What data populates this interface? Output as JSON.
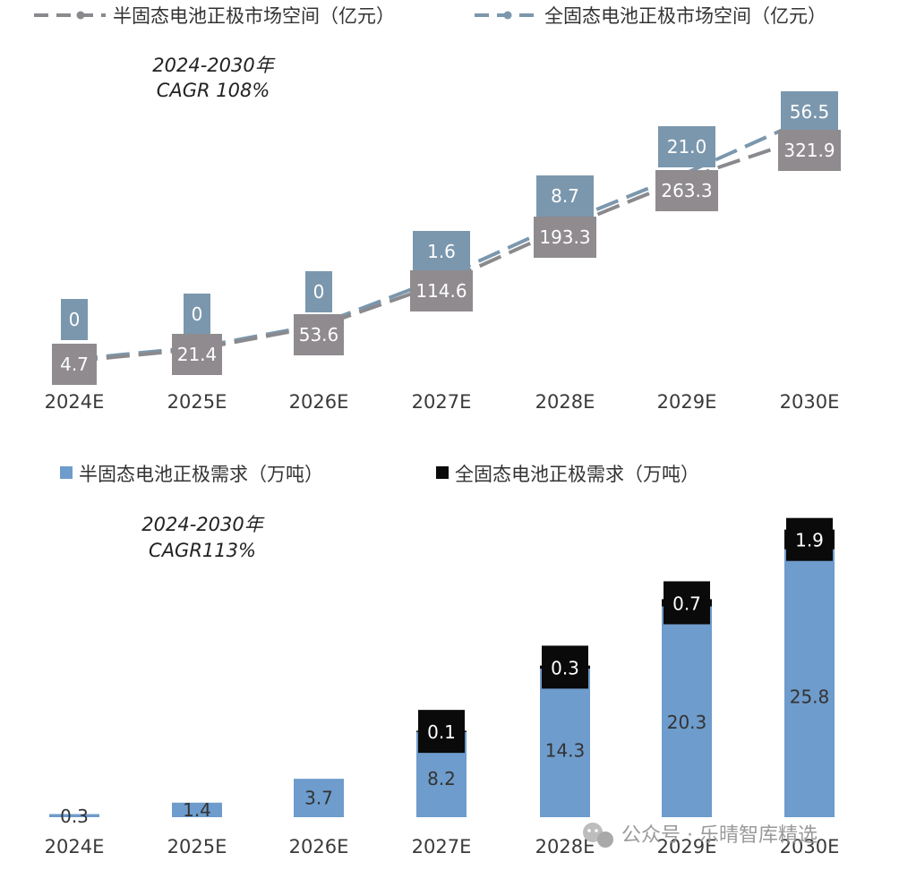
{
  "colors": {
    "semi_line": "#8a8a8e",
    "full_line": "#7b97ad",
    "semi_label_box": "#8f8b8f",
    "full_label_box": "#7b97ad",
    "semi_bar": "#6e9ccc",
    "full_bar": "#0a0a0a"
  },
  "watermark": {
    "text": "公众号 · 乐晴智库精选",
    "icon": "wechat-icon"
  },
  "chart_data": [
    {
      "type": "line",
      "legend_position": "top",
      "grid": false,
      "annotation": {
        "line1": "2024-2030年",
        "line2": "CAGR 108%"
      },
      "categories": [
        "2024E",
        "2025E",
        "2026E",
        "2027E",
        "2028E",
        "2029E",
        "2030E"
      ],
      "series": [
        {
          "name": "半固态电池正极市场空间（亿元）",
          "values": [
            4.7,
            21.4,
            53.6,
            114.6,
            193.3,
            263.3,
            321.9
          ],
          "labels": [
            "4.7",
            "21.4",
            "53.6",
            "114.6",
            "193.3",
            "263.3",
            "321.9"
          ]
        },
        {
          "name": "全固态电池正极市场空间（亿元）",
          "values": [
            0,
            0,
            0,
            1.6,
            8.7,
            21.0,
            56.5
          ],
          "labels": [
            "0",
            "0",
            "0",
            "1.6",
            "8.7",
            "21.0",
            "56.5"
          ]
        }
      ]
    },
    {
      "type": "bar",
      "stacked": true,
      "legend_position": "top",
      "grid": false,
      "annotation": {
        "line1": "2024-2030年",
        "line2": "CAGR113%"
      },
      "categories": [
        "2024E",
        "2025E",
        "2026E",
        "2027E",
        "2028E",
        "2029E",
        "2030E"
      ],
      "series": [
        {
          "name": "半固态电池正极需求（万吨）",
          "values": [
            0.3,
            1.4,
            3.7,
            8.2,
            14.3,
            20.3,
            25.8
          ],
          "labels": [
            "0.3",
            "1.4",
            "3.7",
            "8.2",
            "14.3",
            "20.3",
            "25.8"
          ]
        },
        {
          "name": "全固态电池正极需求（万吨）",
          "values": [
            null,
            null,
            null,
            0.1,
            0.3,
            0.7,
            1.9
          ],
          "labels": [
            "",
            "",
            "",
            "0.1",
            "0.3",
            "0.7",
            "1.9"
          ]
        }
      ]
    }
  ]
}
